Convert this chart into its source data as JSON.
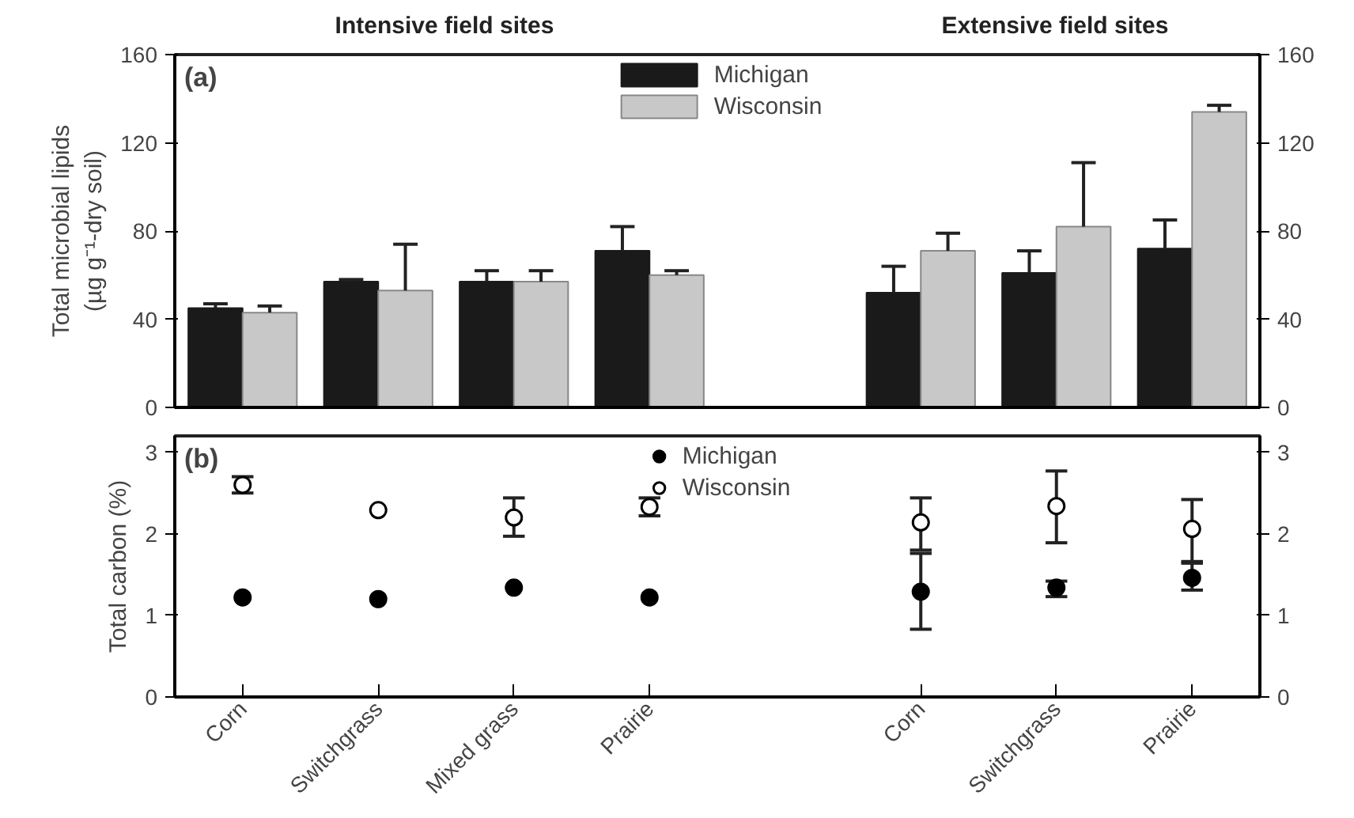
{
  "chart_data": [
    {
      "type": "bar",
      "title": "(a)",
      "annotations": [
        "Intensive field sites",
        "Extensive field sites"
      ],
      "ylabel": "Total microbial lipids\n(µg g⁻¹-dry soil)",
      "categories": [
        null,
        null,
        null,
        null,
        null,
        null,
        null,
        null
      ],
      "series": [
        {
          "name": "Michigan",
          "color": "#1a1a1a",
          "values": [
            45,
            57,
            57,
            71,
            null,
            52,
            61,
            72
          ],
          "errors": [
            [
              45,
              47
            ],
            [
              57,
              58
            ],
            [
              57,
              62
            ],
            [
              71,
              82
            ],
            null,
            [
              52,
              64
            ],
            [
              61,
              71
            ],
            [
              72,
              85
            ]
          ]
        },
        {
          "name": "Wisconsin",
          "color": "#c8c8c8",
          "values": [
            43,
            53,
            57,
            60,
            null,
            71,
            82,
            134
          ],
          "errors": [
            [
              43,
              46
            ],
            [
              53,
              74
            ],
            [
              57,
              62
            ],
            [
              60,
              62
            ],
            null,
            [
              71,
              79
            ],
            [
              82,
              111
            ],
            [
              134,
              137
            ]
          ]
        }
      ],
      "ylim": [
        0,
        160
      ],
      "yticks": [
        0,
        40,
        80,
        120,
        160
      ],
      "y2lim": [
        0,
        160
      ],
      "y2ticks": [
        0,
        40,
        80,
        120,
        160
      ],
      "legend": "top",
      "tick_labels": "y",
      "grid": false
    },
    {
      "type": "scatter",
      "title": "(b)",
      "ylabel": "Total carbon (%)",
      "marker": "circle",
      "categories": [
        "Corn",
        "Switchgrass",
        "Mixed grass",
        "Prairie",
        null,
        "Corn",
        "Switchgrass",
        "Prairie"
      ],
      "series": [
        {
          "name": "Michigan",
          "color": "#000000",
          "values": [
            1.22,
            1.2,
            1.34,
            1.22,
            null,
            1.29,
            1.34,
            1.46
          ],
          "errors": [
            null,
            null,
            null,
            null,
            null,
            [
              0.83,
              1.76
            ],
            [
              1.23,
              1.42
            ],
            [
              1.31,
              1.64
            ]
          ]
        },
        {
          "name": "Wisconsin",
          "color": "#ffffff",
          "values": [
            2.6,
            2.29,
            2.2,
            2.33,
            null,
            2.14,
            2.34,
            2.06
          ],
          "errors": [
            0.1,
            null,
            [
              1.97,
              2.44
            ],
            [
              2.22,
              2.44
            ],
            null,
            [
              1.8,
              2.44
            ],
            [
              1.89,
              2.77
            ],
            [
              1.66,
              2.42
            ]
          ]
        }
      ],
      "ylim": [
        0,
        3.2
      ],
      "yticks": [
        0,
        1,
        2,
        3
      ],
      "y2lim": [
        0,
        3.2
      ],
      "y2ticks": [
        0,
        1,
        2,
        3
      ],
      "legend": "top",
      "grid": false
    }
  ]
}
